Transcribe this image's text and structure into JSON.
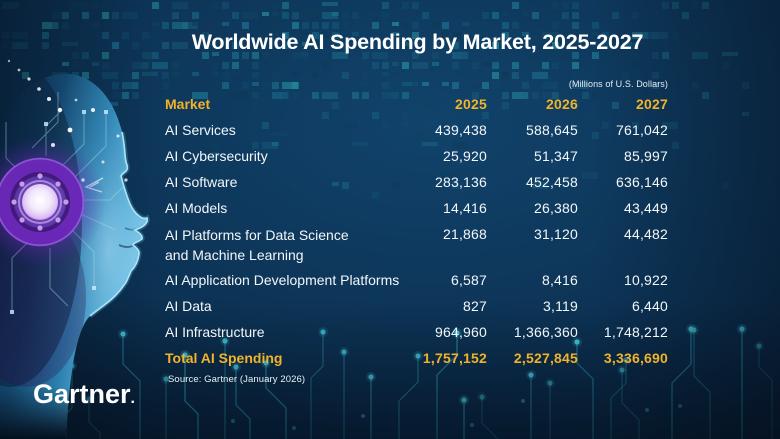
{
  "header": {
    "title": "Worldwide AI Spending by Market, 2025-2027",
    "units_note": "(Millions of U.S. Dollars)"
  },
  "table": {
    "market_header": "Market",
    "year_headers": [
      "2025",
      "2026",
      "2027"
    ],
    "rows": [
      {
        "label_lines": [
          "AI Services"
        ],
        "values": [
          "439,438",
          "588,645",
          "761,042"
        ]
      },
      {
        "label_lines": [
          "AI Cybersecurity"
        ],
        "values": [
          "25,920",
          "51,347",
          "85,997"
        ]
      },
      {
        "label_lines": [
          "AI Software"
        ],
        "values": [
          "283,136",
          "452,458",
          "636,146"
        ]
      },
      {
        "label_lines": [
          "AI Models"
        ],
        "values": [
          "14,416",
          "26,380",
          "43,449"
        ]
      },
      {
        "label_lines": [
          "AI Platforms for Data Science",
          "and Machine Learning"
        ],
        "values": [
          "21,868",
          "31,120",
          "44,482"
        ]
      },
      {
        "label_lines": [
          "AI Application Development Platforms"
        ],
        "values": [
          "6,587",
          "8,416",
          "10,922"
        ]
      },
      {
        "label_lines": [
          "AI Data"
        ],
        "values": [
          "827",
          "3,119",
          "6,440"
        ]
      },
      {
        "label_lines": [
          "AI Infrastructure"
        ],
        "values": [
          "964,960",
          "1,366,360",
          "1,748,212"
        ]
      }
    ],
    "total_row": {
      "label": "Total AI Spending",
      "values": [
        "1,757,152",
        "2,527,845",
        "3,336,690"
      ]
    }
  },
  "footer": {
    "source": "Source: Gartner (January 2026)",
    "logo_text": "Gartner",
    "logo_mark": "."
  },
  "colors": {
    "accent_gold": "#F0B32A",
    "text_white": "#F3F7FA",
    "background_navy": "#0B2F51",
    "circuit_teal": "#2FA8C5",
    "dot_cyan": "#45D2E6",
    "head_blue": "#4FB3DF",
    "core_purple": "#7A2FD0"
  },
  "chart_data": {
    "type": "table",
    "title": "Worldwide AI Spending by Market, 2025-2027",
    "units": "Millions of U.S. Dollars",
    "columns": [
      "Market",
      "2025",
      "2026",
      "2027"
    ],
    "rows": [
      [
        "AI Services",
        439438,
        588645,
        761042
      ],
      [
        "AI Cybersecurity",
        25920,
        51347,
        85997
      ],
      [
        "AI Software",
        283136,
        452458,
        636146
      ],
      [
        "AI Models",
        14416,
        26380,
        43449
      ],
      [
        "AI Platforms for Data Science and Machine Learning",
        21868,
        31120,
        44482
      ],
      [
        "AI Application Development Platforms",
        6587,
        8416,
        10922
      ],
      [
        "AI Data",
        827,
        3119,
        6440
      ],
      [
        "AI Infrastructure",
        964960,
        1366360,
        1748212
      ],
      [
        "Total AI Spending",
        1757152,
        2527845,
        3336690
      ]
    ],
    "source": "Source: Gartner (January 2026)"
  }
}
